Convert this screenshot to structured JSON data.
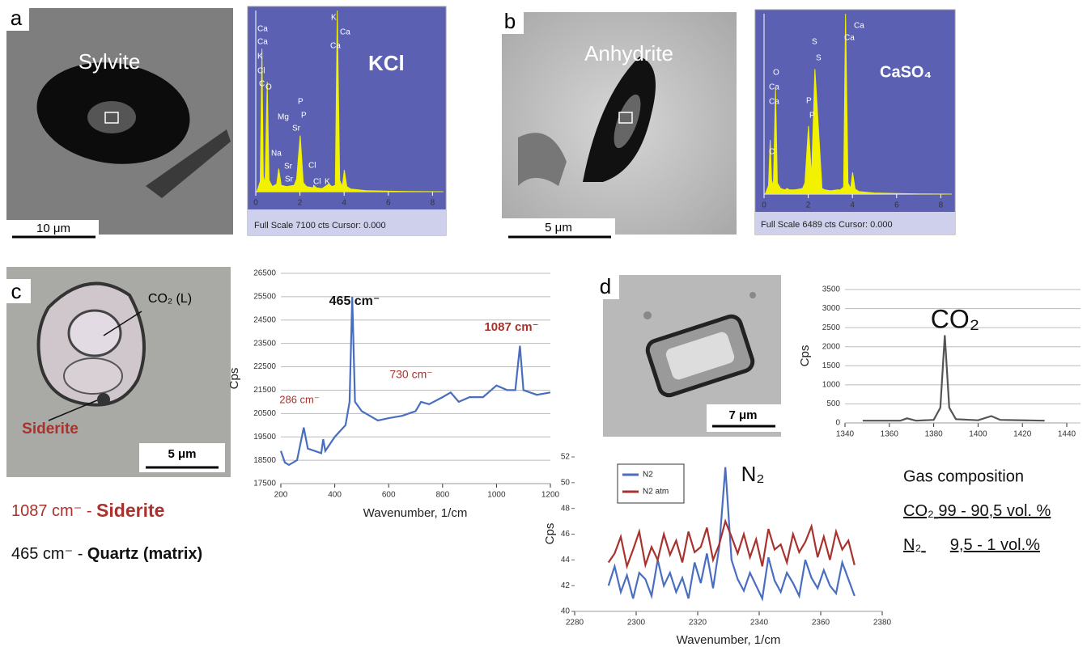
{
  "panel_labels": [
    "a",
    "b",
    "c",
    "d"
  ],
  "images": {
    "a": {
      "mineral": "Sylvite",
      "scale": "10 μm"
    },
    "b": {
      "mineral": "Anhydrite",
      "scale": "5 μm"
    },
    "c": {
      "inclusion": "CO₂ (L)",
      "mineral": "Siderite",
      "scale": "5 μm"
    },
    "d": {
      "scale": "7 μm"
    }
  },
  "captions": [
    {
      "band": "1087 cm⁻ -",
      "mineral": "Siderite"
    },
    {
      "band": "465 cm⁻ -",
      "mineral": "Quartz (matrix)"
    }
  ],
  "gas_composition": {
    "title": "Gas composition",
    "rows": [
      {
        "gas": "CO₂",
        "value": "99 - 90,5 vol. %"
      },
      {
        "gas": "N₂",
        "value": "9,5 - 1 vol.%"
      }
    ]
  },
  "chart_data": [
    {
      "type": "area",
      "caption": "Full Scale 7100 cts Cursor: 0.000",
      "color": "#f2f200",
      "background": "#5b60b3",
      "x": [
        0.05,
        0.2,
        0.28,
        0.34,
        0.42,
        0.52,
        0.6,
        0.75,
        0.95,
        1.04,
        1.15,
        1.4,
        1.74,
        1.85,
        2.01,
        2.15,
        2.3,
        2.6,
        2.62,
        2.75,
        3.0,
        3.31,
        3.45,
        3.6,
        3.69,
        3.8,
        3.92,
        4.01,
        4.12,
        4.3,
        5,
        6,
        7,
        8.5
      ],
      "values": [
        0,
        400,
        5600,
        600,
        350,
        4300,
        450,
        200,
        300,
        900,
        250,
        200,
        250,
        500,
        2200,
        350,
        200,
        150,
        250,
        150,
        120,
        300,
        200,
        250,
        7100,
        450,
        200,
        850,
        200,
        100,
        40,
        20,
        10,
        0
      ],
      "xlim": [
        0,
        8.5
      ],
      "xticks": [
        0,
        2,
        4,
        6,
        8
      ],
      "ylim": [
        0,
        7100
      ],
      "annotations": [
        "Ca",
        "Ca",
        "K",
        "Cl",
        "C",
        "O",
        "Mg",
        "P",
        "P",
        "Sr",
        "Na",
        "Sr",
        "Sr",
        "Cl",
        "Cl",
        "K",
        "K",
        "Ca",
        "Ca",
        "KCl"
      ]
    },
    {
      "type": "area",
      "caption": "Full Scale 6489 cts Cursor: 0.000",
      "color": "#f2f200",
      "background": "#5b60b3",
      "x": [
        0.05,
        0.2,
        0.28,
        0.34,
        0.42,
        0.52,
        0.6,
        0.75,
        0.95,
        1.04,
        1.15,
        1.4,
        1.74,
        1.85,
        2.01,
        2.15,
        2.3,
        2.6,
        2.62,
        2.75,
        3.0,
        3.31,
        3.45,
        3.6,
        3.69,
        3.8,
        3.92,
        4.01,
        4.12,
        4.3,
        5,
        6,
        7,
        8.5
      ],
      "values": [
        0,
        300,
        1950,
        500,
        300,
        3800,
        400,
        200,
        150,
        200,
        150,
        150,
        200,
        400,
        2450,
        600,
        4500,
        500,
        200,
        150,
        120,
        150,
        150,
        250,
        6489,
        400,
        200,
        780,
        180,
        90,
        40,
        20,
        10,
        0
      ],
      "xlim": [
        0,
        8.5
      ],
      "xticks": [
        0,
        2,
        4,
        6,
        8
      ],
      "ylim": [
        0,
        6489
      ],
      "annotations": [
        "O",
        "Ca",
        "Ca",
        "C",
        "S",
        "S",
        "P",
        "P",
        "Ca",
        "Ca",
        "CaSO₄"
      ]
    },
    {
      "type": "line",
      "x_label": "Wavenumber, 1/cm",
      "y_label": "Cps",
      "grid": true,
      "color": "#4a6ebf",
      "x": [
        200,
        215,
        230,
        260,
        285,
        300,
        350,
        357,
        365,
        400,
        440,
        455,
        465,
        475,
        500,
        530,
        560,
        600,
        650,
        700,
        720,
        750,
        800,
        830,
        860,
        900,
        950,
        1000,
        1040,
        1070,
        1087,
        1100,
        1150,
        1200
      ],
      "values": [
        18900,
        18400,
        18300,
        18500,
        19900,
        19000,
        18800,
        19400,
        18900,
        19500,
        20000,
        21000,
        25500,
        21000,
        20600,
        20400,
        20200,
        20300,
        20400,
        20600,
        21000,
        20900,
        21200,
        21400,
        21000,
        21200,
        21200,
        21700,
        21500,
        21500,
        23400,
        21500,
        21300,
        21400
      ],
      "xlim": [
        200,
        1200
      ],
      "xticks": [
        200,
        400,
        600,
        800,
        1000,
        1200
      ],
      "ylim": [
        17500,
        26500
      ],
      "yticks": [
        17500,
        18500,
        19500,
        20500,
        21500,
        22500,
        23500,
        24500,
        25500,
        26500
      ],
      "annotations": [
        "465 cm⁻",
        "1087 cm⁻",
        "730 cm⁻",
        "286 cm⁻"
      ]
    },
    {
      "type": "line",
      "y_label": "Cps",
      "grid": true,
      "color": "#555555",
      "x": [
        1348,
        1365,
        1368,
        1372,
        1380,
        1383,
        1385,
        1387,
        1390,
        1400,
        1406,
        1410,
        1430
      ],
      "values": [
        60,
        60,
        120,
        60,
        80,
        400,
        2300,
        400,
        100,
        70,
        180,
        80,
        60
      ],
      "xlim": [
        1340,
        1440
      ],
      "xticks": [
        1340,
        1360,
        1380,
        1400,
        1420,
        1440
      ],
      "ylim": [
        0,
        3500
      ],
      "yticks": [
        0,
        500,
        1000,
        1500,
        2000,
        2500,
        3000,
        3500
      ],
      "annotations": [
        "CO₂"
      ]
    },
    {
      "type": "line",
      "x_label": "Wavenumber, 1/cm",
      "y_label": "Cps",
      "grid": false,
      "x": [
        2291,
        2293,
        2295,
        2297,
        2299,
        2301,
        2303,
        2305,
        2307,
        2309,
        2311,
        2313,
        2315,
        2317,
        2319,
        2321,
        2323,
        2325,
        2327,
        2329,
        2331,
        2333,
        2335,
        2337,
        2339,
        2341,
        2343,
        2345,
        2347,
        2349,
        2351,
        2353,
        2355,
        2357,
        2359,
        2361,
        2363,
        2365,
        2367,
        2369,
        2371
      ],
      "series": [
        {
          "name": "N2",
          "color": "#4a6ebf",
          "values": [
            42,
            43.5,
            41.5,
            42.8,
            41,
            43,
            42.5,
            41.2,
            44,
            42,
            43,
            41.5,
            42.6,
            41,
            43.8,
            42.2,
            44.5,
            41.8,
            45,
            51.2,
            44,
            42.5,
            41.6,
            43,
            42,
            41,
            44.2,
            42.4,
            41.5,
            43,
            42.2,
            41.2,
            44,
            42.6,
            41.8,
            43.2,
            42,
            41.4,
            43.8,
            42.5,
            41.2
          ]
        },
        {
          "name": "N2 atm",
          "color": "#a8322d",
          "values": [
            43.8,
            44.5,
            45.8,
            43.5,
            44.8,
            46.2,
            43.6,
            45,
            44,
            46,
            44.4,
            45.5,
            43.8,
            46.2,
            44.6,
            45,
            46.5,
            44,
            45.2,
            47,
            45.8,
            44.5,
            46,
            44.2,
            45.6,
            43.5,
            46.4,
            44.8,
            45.2,
            43.8,
            46,
            44.6,
            45.4,
            46.6,
            44.2,
            45.8,
            44,
            46.2,
            44.8,
            45.5,
            43.6
          ]
        }
      ],
      "xlim": [
        2280,
        2380
      ],
      "xticks": [
        2280,
        2300,
        2320,
        2340,
        2360,
        2380
      ],
      "ylim": [
        40,
        52
      ],
      "yticks": [
        40,
        42,
        44,
        46,
        48,
        50,
        52
      ],
      "annotations": [
        "N₂"
      ]
    }
  ]
}
